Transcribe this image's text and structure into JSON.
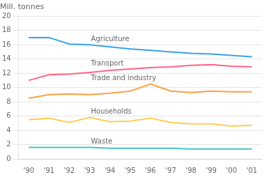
{
  "chart_data": {
    "type": "line",
    "ylabel": "Mill. tonnes",
    "categories": [
      "'90",
      "'91",
      "'92",
      "'93",
      "'94",
      "'95",
      "'96",
      "'97",
      "'98",
      "'99",
      "'00",
      "'01"
    ],
    "series": [
      {
        "name": "Agriculture",
        "values": [
          17.0,
          17.0,
          16.1,
          16.0,
          15.7,
          15.4,
          15.2,
          15.0,
          14.8,
          14.7,
          14.5,
          14.3
        ]
      },
      {
        "name": "Transport",
        "values": [
          11.0,
          11.8,
          11.9,
          12.1,
          12.4,
          12.6,
          12.8,
          12.9,
          13.1,
          13.2,
          13.0,
          12.9
        ]
      },
      {
        "name": "Trade and industry",
        "values": [
          8.5,
          9.0,
          9.1,
          9.0,
          9.2,
          9.5,
          10.5,
          9.5,
          9.3,
          9.5,
          9.4,
          9.4
        ]
      },
      {
        "name": "Households",
        "values": [
          5.5,
          5.7,
          5.1,
          5.8,
          5.2,
          5.3,
          5.7,
          5.1,
          4.9,
          4.9,
          4.6,
          4.7
        ]
      },
      {
        "name": "Waste",
        "values": [
          1.6,
          1.6,
          1.6,
          1.6,
          1.5,
          1.5,
          1.5,
          1.5,
          1.4,
          1.4,
          1.4,
          1.4
        ]
      }
    ],
    "ylim": [
      0,
      20
    ],
    "yticks": [
      0,
      2,
      4,
      6,
      8,
      10,
      12,
      14,
      16,
      18,
      20
    ],
    "grid": true
  }
}
